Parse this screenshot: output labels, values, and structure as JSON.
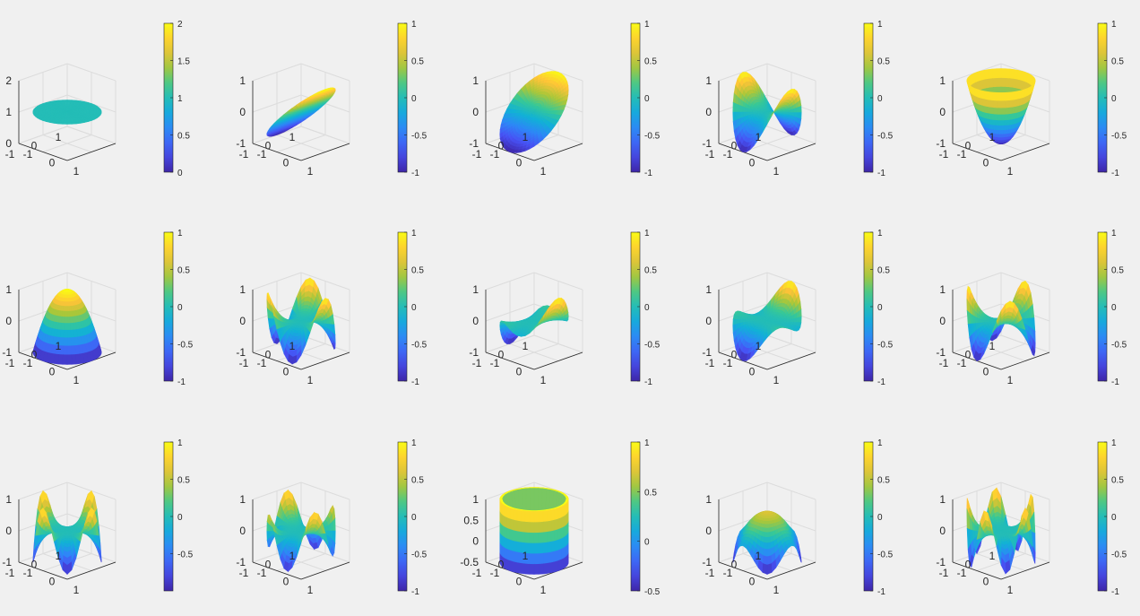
{
  "figure": {
    "background": "#f0f0f0",
    "colormap": "parula",
    "layout": {
      "rows": 3,
      "cols": 5
    }
  },
  "chart_data": [
    {
      "type": "surface",
      "surface": "flat_disc",
      "grid": true,
      "xticks": [
        "-1",
        "0",
        "1"
      ],
      "yticks": [
        "-1",
        "0",
        "1"
      ],
      "zticks": [
        "0",
        "1",
        "2"
      ],
      "zlim": [
        0,
        2
      ],
      "colorbar": {
        "ticks": [
          "0",
          "0.5",
          "1",
          "1.5",
          "2"
        ],
        "clim": [
          0,
          2
        ]
      }
    },
    {
      "type": "surface",
      "surface": "tilted_plane_x",
      "grid": true,
      "xticks": [
        "-1",
        "0",
        "1"
      ],
      "yticks": [
        "-1",
        "0",
        "1"
      ],
      "zticks": [
        "-1",
        "0",
        "1"
      ],
      "zlim": [
        -1,
        1
      ],
      "colorbar": {
        "ticks": [
          "-1",
          "-0.5",
          "0",
          "0.5",
          "1"
        ],
        "clim": [
          -1,
          1
        ]
      }
    },
    {
      "type": "surface",
      "surface": "tilted_plane_y",
      "grid": true,
      "xticks": [
        "-1",
        "0",
        "1"
      ],
      "yticks": [
        "-1",
        "0",
        "1"
      ],
      "zticks": [
        "-1",
        "0",
        "1"
      ],
      "zlim": [
        -1,
        1
      ],
      "colorbar": {
        "ticks": [
          "-1",
          "-0.5",
          "0",
          "0.5",
          "1"
        ],
        "clim": [
          -1,
          1
        ]
      }
    },
    {
      "type": "surface",
      "surface": "saddle",
      "grid": true,
      "xticks": [
        "-1",
        "0",
        "1"
      ],
      "yticks": [
        "-1",
        "0",
        "1"
      ],
      "zticks": [
        "-1",
        "0",
        "1"
      ],
      "zlim": [
        -1,
        1
      ],
      "colorbar": {
        "ticks": [
          "-1",
          "-0.5",
          "0",
          "0.5",
          "1"
        ],
        "clim": [
          -1,
          1
        ]
      }
    },
    {
      "type": "surface",
      "surface": "bowl",
      "grid": true,
      "xticks": [
        "-1",
        "0",
        "1"
      ],
      "yticks": [
        "-1",
        "0",
        "1"
      ],
      "zticks": [
        "-1",
        "0",
        "1"
      ],
      "zlim": [
        -1,
        1
      ],
      "colorbar": {
        "ticks": [
          "-1",
          "-0.5",
          "0",
          "0.5",
          "1"
        ],
        "clim": [
          -1,
          1
        ]
      }
    },
    {
      "type": "surface",
      "surface": "dome",
      "grid": true,
      "xticks": [
        "-1",
        "0",
        "1"
      ],
      "yticks": [
        "-1",
        "0",
        "1"
      ],
      "zticks": [
        "-1",
        "0",
        "1"
      ],
      "zlim": [
        -1,
        1
      ],
      "colorbar": {
        "ticks": [
          "-1",
          "-0.5",
          "0",
          "0.5",
          "1"
        ],
        "clim": [
          -1,
          1
        ]
      }
    },
    {
      "type": "surface",
      "surface": "four_lobe",
      "grid": true,
      "xticks": [
        "-1",
        "0",
        "1"
      ],
      "yticks": [
        "-1",
        "0",
        "1"
      ],
      "zticks": [
        "-1",
        "0",
        "1"
      ],
      "zlim": [
        -1,
        1
      ],
      "colorbar": {
        "ticks": [
          "-1",
          "-0.5",
          "0",
          "0.5",
          "1"
        ],
        "clim": [
          -1,
          1
        ]
      }
    },
    {
      "type": "surface",
      "surface": "ring_tilt_x",
      "grid": true,
      "xticks": [
        "-1",
        "0",
        "1"
      ],
      "yticks": [
        "-1",
        "0",
        "1"
      ],
      "zticks": [
        "-1",
        "0",
        "1"
      ],
      "zlim": [
        -1,
        1
      ],
      "colorbar": {
        "ticks": [
          "-1",
          "-0.5",
          "0",
          "0.5",
          "1"
        ],
        "clim": [
          -1,
          1
        ]
      }
    },
    {
      "type": "surface",
      "surface": "ring_tilt_y",
      "grid": true,
      "xticks": [
        "-1",
        "0",
        "1"
      ],
      "yticks": [
        "-1",
        "0",
        "1"
      ],
      "zticks": [
        "-1",
        "0",
        "1"
      ],
      "zlim": [
        -1,
        1
      ],
      "colorbar": {
        "ticks": [
          "-1",
          "-0.5",
          "0",
          "0.5",
          "1"
        ],
        "clim": [
          -1,
          1
        ]
      }
    },
    {
      "type": "surface",
      "surface": "monkey_saddle",
      "grid": true,
      "xticks": [
        "-1",
        "0",
        "1"
      ],
      "yticks": [
        "-1",
        "0",
        "1"
      ],
      "zticks": [
        "-1",
        "0",
        "1"
      ],
      "zlim": [
        -1,
        1
      ],
      "colorbar": {
        "ticks": [
          "-1",
          "-0.5",
          "0",
          "0.5",
          "1"
        ],
        "clim": [
          -1,
          1
        ]
      }
    },
    {
      "type": "surface",
      "surface": "four_lobe_cos",
      "grid": true,
      "xticks": [
        "-1",
        "0",
        "1"
      ],
      "yticks": [
        "-1",
        "0",
        "1"
      ],
      "zticks": [
        "-1",
        "0",
        "1"
      ],
      "zlim": [
        -1,
        1
      ],
      "colorbar": {
        "ticks": [
          "-0.5",
          "0",
          "0.5",
          "1"
        ],
        "clim": [
          -1,
          1
        ]
      }
    },
    {
      "type": "surface",
      "surface": "six_lobe",
      "grid": true,
      "xticks": [
        "-1",
        "0",
        "1"
      ],
      "yticks": [
        "-1",
        "0",
        "1"
      ],
      "zticks": [
        "-1",
        "0",
        "1"
      ],
      "zlim": [
        -1,
        1
      ],
      "colorbar": {
        "ticks": [
          "-1",
          "-0.5",
          "0",
          "0.5",
          "1"
        ],
        "clim": [
          -1,
          1
        ]
      }
    },
    {
      "type": "surface",
      "surface": "cylinder_peak",
      "grid": true,
      "xticks": [
        "-1",
        "0",
        "1"
      ],
      "yticks": [
        "-1",
        "0",
        "1"
      ],
      "zticks": [
        "-0.5",
        "0",
        "0.5",
        "1"
      ],
      "zlim": [
        -0.5,
        1
      ],
      "colorbar": {
        "ticks": [
          "-0.5",
          "0",
          "0.5",
          "1"
        ],
        "clim": [
          -0.5,
          1
        ]
      }
    },
    {
      "type": "surface",
      "surface": "dome_ripple",
      "grid": true,
      "xticks": [
        "-1",
        "0",
        "1"
      ],
      "yticks": [
        "-1",
        "0",
        "1"
      ],
      "zticks": [
        "-1",
        "0",
        "1"
      ],
      "zlim": [
        -1,
        1
      ],
      "colorbar": {
        "ticks": [
          "-1",
          "-0.5",
          "0",
          "0.5",
          "1"
        ],
        "clim": [
          -1,
          1
        ]
      }
    },
    {
      "type": "surface",
      "surface": "eight_lobe",
      "grid": true,
      "xticks": [
        "-1",
        "0",
        "1"
      ],
      "yticks": [
        "-1",
        "0",
        "1"
      ],
      "zticks": [
        "-1",
        "0",
        "1"
      ],
      "zlim": [
        -1,
        1
      ],
      "colorbar": {
        "ticks": [
          "-1",
          "-0.5",
          "0",
          "0.5",
          "1"
        ],
        "clim": [
          -1,
          1
        ]
      }
    }
  ]
}
